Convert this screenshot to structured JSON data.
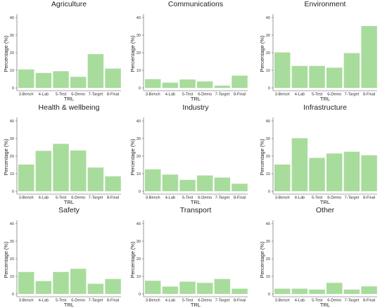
{
  "chart_data": [
    {
      "type": "bar",
      "title": "Agriculture",
      "categories": [
        "3-Bench",
        "4-Lab",
        "5-Test",
        "6-Demo",
        "7-Target",
        "8-Final"
      ],
      "values": [
        10.5,
        8.5,
        9.5,
        6.3,
        19.2,
        11
      ],
      "xlabel": "TRL",
      "ylabel": "Percentage (%)",
      "ylim": [
        0,
        42
      ],
      "yticks": [
        0,
        10,
        20,
        30,
        40
      ],
      "color": "#a8dc9c"
    },
    {
      "type": "bar",
      "title": "Communications",
      "categories": [
        "3-Bench",
        "4-Lab",
        "5-Test",
        "6-Demo",
        "7-Target",
        "8-Final"
      ],
      "values": [
        5,
        3,
        4.8,
        3.7,
        1.3,
        7
      ],
      "xlabel": "TRL",
      "ylabel": "Percentage (%)",
      "ylim": [
        0,
        42
      ],
      "yticks": [
        0,
        10,
        20,
        30,
        40
      ],
      "color": "#a8dc9c"
    },
    {
      "type": "bar",
      "title": "Environment",
      "categories": [
        "3-Bench",
        "4-Lab",
        "5-Test",
        "6-Demo",
        "7-Target",
        "8-Final"
      ],
      "values": [
        20.2,
        12.5,
        12.5,
        11.5,
        19.8,
        35.2
      ],
      "xlabel": "TRL",
      "ylabel": "Percentage (%)",
      "ylim": [
        0,
        42
      ],
      "yticks": [
        0,
        10,
        20,
        30,
        40
      ],
      "color": "#a8dc9c"
    },
    {
      "type": "bar",
      "title": "Health & wellbeing",
      "categories": [
        "3-Bench",
        "4-Lab",
        "5-Test",
        "6-Demo",
        "7-Target",
        "8-Final"
      ],
      "values": [
        15.2,
        23,
        27,
        23.2,
        13.5,
        8.5
      ],
      "xlabel": "TRL",
      "ylabel": "Percentage (%)",
      "ylim": [
        0,
        42
      ],
      "yticks": [
        0,
        10,
        20,
        30,
        40
      ],
      "color": "#a8dc9c"
    },
    {
      "type": "bar",
      "title": "Industry",
      "categories": [
        "3-Bench",
        "4-Lab",
        "5-Test",
        "6-Demo",
        "7-Target",
        "8-Final"
      ],
      "values": [
        12.5,
        9.5,
        6.5,
        9,
        7.8,
        4.3
      ],
      "xlabel": "TRL",
      "ylabel": "Percentage (%)",
      "ylim": [
        0,
        42
      ],
      "yticks": [
        0,
        10,
        20,
        30,
        40
      ],
      "color": "#a8dc9c"
    },
    {
      "type": "bar",
      "title": "Infrastructure",
      "categories": [
        "3-Bench",
        "4-Lab",
        "5-Test",
        "6-Demo",
        "7-Target",
        "8-Final"
      ],
      "values": [
        15.2,
        30.2,
        19,
        21.5,
        22.5,
        20.5
      ],
      "xlabel": "TRL",
      "ylabel": "Percentage (%)",
      "ylim": [
        0,
        42
      ],
      "yticks": [
        0,
        10,
        20,
        30,
        40
      ],
      "color": "#a8dc9c"
    },
    {
      "type": "bar",
      "title": "Safety",
      "categories": [
        "3-Bench",
        "4-Lab",
        "5-Test",
        "6-Demo",
        "7-Target",
        "8-Final"
      ],
      "values": [
        12.5,
        7.3,
        12.5,
        14.3,
        5.8,
        8.5
      ],
      "xlabel": "TRL",
      "ylabel": "Percentage (%)",
      "ylim": [
        0,
        42
      ],
      "yticks": [
        0,
        10,
        20,
        30,
        40
      ],
      "color": "#a8dc9c"
    },
    {
      "type": "bar",
      "title": "Transport",
      "categories": [
        "3-Bench",
        "4-Lab",
        "5-Test",
        "6-Demo",
        "7-Target",
        "8-Final"
      ],
      "values": [
        7.5,
        4.2,
        7,
        6.3,
        8.5,
        3
      ],
      "xlabel": "TRL",
      "ylabel": "Percentage (%)",
      "ylim": [
        0,
        42
      ],
      "yticks": [
        0,
        10,
        20,
        30,
        40
      ],
      "color": "#a8dc9c"
    },
    {
      "type": "bar",
      "title": "Other",
      "categories": [
        "3-Bench",
        "4-Lab",
        "5-Test",
        "6-Demo",
        "7-Target",
        "8-Final"
      ],
      "values": [
        3,
        3,
        2.5,
        6.3,
        2.5,
        4.3
      ],
      "xlabel": "TRL",
      "ylabel": "Percentage (%)",
      "ylim": [
        0,
        42
      ],
      "yticks": [
        0,
        10,
        20,
        30,
        40
      ],
      "color": "#a8dc9c"
    }
  ]
}
